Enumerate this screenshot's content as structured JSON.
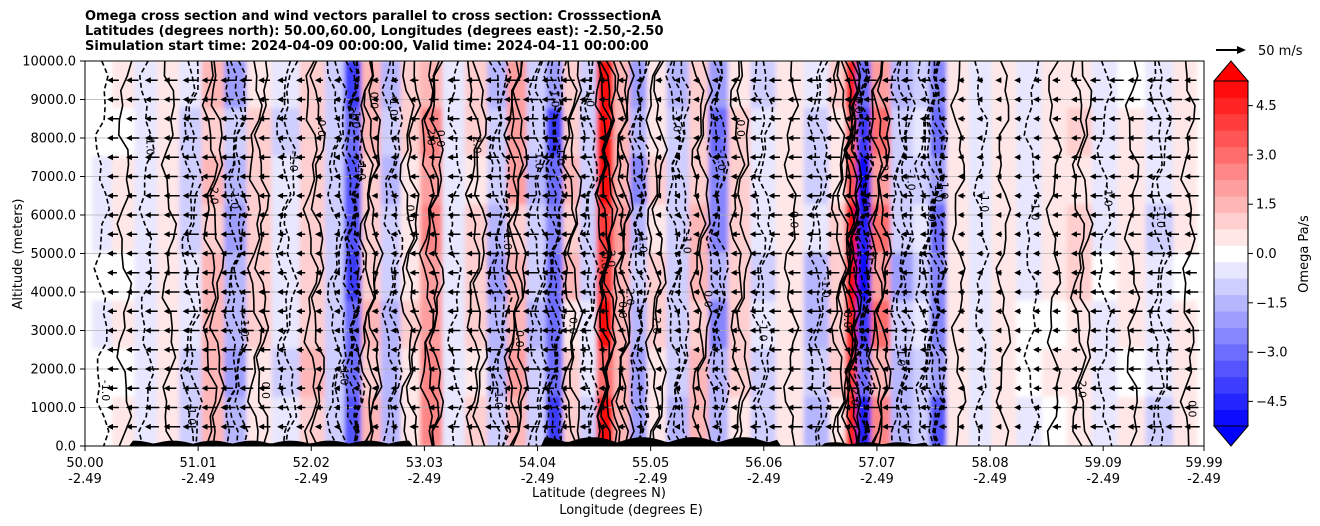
{
  "chart_data": {
    "type": "heatmap",
    "title_lines": [
      "Omega cross section and wind vectors parallel to cross section: CrosssectionA",
      "Latitudes (degrees north): 50.00,60.00, Longitudes (degrees east): -2.50,-2.50",
      "Simulation start time: 2024-04-09 00:00:00, Valid time: 2024-04-11 00:00:00"
    ],
    "ylabel": "Altitude (meters)",
    "xlabel_lines": [
      "Latitude (degrees N)",
      "Longitude (degrees E)"
    ],
    "ylim": [
      0,
      10000
    ],
    "y_ticks": [
      "0.0",
      "1000.0",
      "2000.0",
      "3000.0",
      "4000.0",
      "5000.0",
      "6000.0",
      "7000.0",
      "8000.0",
      "9000.0",
      "10000.0"
    ],
    "x_ticks": [
      {
        "lat": "50.00",
        "lon": "-2.49"
      },
      {
        "lat": "51.01",
        "lon": "-2.49"
      },
      {
        "lat": "52.02",
        "lon": "-2.49"
      },
      {
        "lat": "53.03",
        "lon": "-2.49"
      },
      {
        "lat": "54.04",
        "lon": "-2.49"
      },
      {
        "lat": "55.05",
        "lon": "-2.49"
      },
      {
        "lat": "56.06",
        "lon": "-2.49"
      },
      {
        "lat": "57.07",
        "lon": "-2.49"
      },
      {
        "lat": "58.08",
        "lon": "-2.49"
      },
      {
        "lat": "59.09",
        "lon": "-2.49"
      },
      {
        "lat": "59.99",
        "lon": "-2.49"
      }
    ],
    "colorbar": {
      "label": "Omega Pa/s",
      "range": [
        -5.25,
        5.25
      ],
      "ticks": [
        "4.5",
        "3.0",
        "1.5",
        "0.0",
        "−1.5",
        "−3.0",
        "−4.5"
      ],
      "tick_values": [
        4.5,
        3.0,
        1.5,
        0.0,
        -1.5,
        -3.0,
        -4.5
      ],
      "levels": 21
    },
    "quiver_key": "50 m/s",
    "contour_labels": [
      "0.0",
      "1.0",
      "2.0",
      "3.0",
      "-1.0",
      "-2.0"
    ],
    "omega_bands": [
      {
        "lat": 50.15,
        "value": -0.3
      },
      {
        "lat": 50.35,
        "value": 0.3
      },
      {
        "lat": 50.55,
        "value": -0.4
      },
      {
        "lat": 50.75,
        "value": 0.6
      },
      {
        "lat": 50.95,
        "value": -1.0
      },
      {
        "lat": 51.15,
        "value": 1.4
      },
      {
        "lat": 51.35,
        "value": -1.8
      },
      {
        "lat": 51.55,
        "value": 1.0
      },
      {
        "lat": 51.8,
        "value": -0.8
      },
      {
        "lat": 52.05,
        "value": 1.2
      },
      {
        "lat": 52.25,
        "value": -1.2
      },
      {
        "lat": 52.4,
        "value": -4.0
      },
      {
        "lat": 52.55,
        "value": 1.6
      },
      {
        "lat": 52.75,
        "value": -1.5
      },
      {
        "lat": 52.9,
        "value": 0.8
      },
      {
        "lat": 53.1,
        "value": 2.2
      },
      {
        "lat": 53.3,
        "value": -0.6
      },
      {
        "lat": 53.5,
        "value": 1.0
      },
      {
        "lat": 53.7,
        "value": -1.6
      },
      {
        "lat": 53.85,
        "value": 1.8
      },
      {
        "lat": 54.05,
        "value": -1.4
      },
      {
        "lat": 54.2,
        "value": -3.8
      },
      {
        "lat": 54.35,
        "value": 1.2
      },
      {
        "lat": 54.5,
        "value": -1.0
      },
      {
        "lat": 54.65,
        "value": 5.2
      },
      {
        "lat": 54.8,
        "value": 1.8
      },
      {
        "lat": 54.95,
        "value": -2.2
      },
      {
        "lat": 55.1,
        "value": 0.8
      },
      {
        "lat": 55.3,
        "value": -1.6
      },
      {
        "lat": 55.5,
        "value": 1.4
      },
      {
        "lat": 55.65,
        "value": -2.6
      },
      {
        "lat": 55.85,
        "value": 1.0
      },
      {
        "lat": 56.05,
        "value": -0.8
      },
      {
        "lat": 56.3,
        "value": 0.6
      },
      {
        "lat": 56.55,
        "value": -1.2
      },
      {
        "lat": 56.75,
        "value": 1.0
      },
      {
        "lat": 56.85,
        "value": 5.2
      },
      {
        "lat": 56.95,
        "value": -5.2
      },
      {
        "lat": 57.1,
        "value": 2.6
      },
      {
        "lat": 57.3,
        "value": -1.6
      },
      {
        "lat": 57.5,
        "value": -1.0
      },
      {
        "lat": 57.6,
        "value": -3.4
      },
      {
        "lat": 57.8,
        "value": 0.5
      },
      {
        "lat": 58.0,
        "value": -0.5
      },
      {
        "lat": 58.2,
        "value": 0.4
      },
      {
        "lat": 58.45,
        "value": -0.4
      },
      {
        "lat": 58.65,
        "value": 0.3
      },
      {
        "lat": 58.9,
        "value": 0.8
      },
      {
        "lat": 59.1,
        "value": -0.4
      },
      {
        "lat": 59.35,
        "value": 0.3
      },
      {
        "lat": 59.6,
        "value": -0.7
      },
      {
        "lat": 59.85,
        "value": 0.4
      }
    ]
  }
}
